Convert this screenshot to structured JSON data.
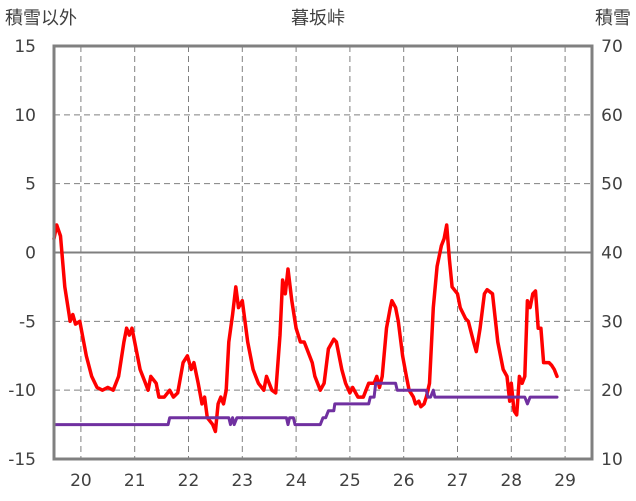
{
  "chart_data": {
    "type": "line",
    "title": "暮坂峠",
    "left_axis_label": "積雪以外",
    "right_axis_label": "積雪",
    "left_ylim": [
      -15,
      15
    ],
    "right_ylim": [
      10,
      70
    ],
    "left_ticks": [
      "15",
      "10",
      "5",
      "0",
      "-5",
      "-10",
      "-15"
    ],
    "right_ticks": [
      "70",
      "60",
      "50",
      "40",
      "30",
      "20",
      "10"
    ],
    "x_ticks": [
      "20",
      "21",
      "22",
      "23",
      "24",
      "25",
      "26",
      "27",
      "28",
      "29"
    ],
    "xlim": [
      19.5,
      29.5
    ],
    "grid": true,
    "series": [
      {
        "axis": "left",
        "color": "#ff0000",
        "points": [
          [
            19.5,
            1.0
          ],
          [
            19.55,
            2.0
          ],
          [
            19.62,
            1.2
          ],
          [
            19.7,
            -2.5
          ],
          [
            19.78,
            -4.5
          ],
          [
            19.8,
            -5.0
          ],
          [
            19.85,
            -4.5
          ],
          [
            19.9,
            -5.2
          ],
          [
            19.98,
            -5.0
          ],
          [
            20.1,
            -7.5
          ],
          [
            20.2,
            -9.0
          ],
          [
            20.3,
            -9.8
          ],
          [
            20.4,
            -10.0
          ],
          [
            20.5,
            -9.8
          ],
          [
            20.6,
            -10.0
          ],
          [
            20.7,
            -9.0
          ],
          [
            20.8,
            -6.5
          ],
          [
            20.85,
            -5.5
          ],
          [
            20.9,
            -6.0
          ],
          [
            20.95,
            -5.5
          ],
          [
            21.0,
            -6.5
          ],
          [
            21.1,
            -8.5
          ],
          [
            21.2,
            -9.5
          ],
          [
            21.25,
            -10.0
          ],
          [
            21.3,
            -9.0
          ],
          [
            21.4,
            -9.5
          ],
          [
            21.45,
            -10.5
          ],
          [
            21.55,
            -10.5
          ],
          [
            21.65,
            -10.0
          ],
          [
            21.72,
            -10.5
          ],
          [
            21.8,
            -10.2
          ],
          [
            21.9,
            -8.0
          ],
          [
            21.98,
            -7.5
          ],
          [
            22.05,
            -8.5
          ],
          [
            22.1,
            -8.0
          ],
          [
            22.18,
            -9.5
          ],
          [
            22.25,
            -11.0
          ],
          [
            22.3,
            -10.5
          ],
          [
            22.35,
            -12.0
          ],
          [
            22.45,
            -12.5
          ],
          [
            22.5,
            -13.0
          ],
          [
            22.55,
            -11.0
          ],
          [
            22.6,
            -10.5
          ],
          [
            22.65,
            -11.0
          ],
          [
            22.7,
            -10.0
          ],
          [
            22.75,
            -6.5
          ],
          [
            22.82,
            -4.5
          ],
          [
            22.88,
            -2.5
          ],
          [
            22.93,
            -4.0
          ],
          [
            23.0,
            -3.5
          ],
          [
            23.1,
            -6.5
          ],
          [
            23.2,
            -8.5
          ],
          [
            23.3,
            -9.5
          ],
          [
            23.4,
            -10.0
          ],
          [
            23.45,
            -9.0
          ],
          [
            23.5,
            -9.5
          ],
          [
            23.55,
            -10.0
          ],
          [
            23.62,
            -10.2
          ],
          [
            23.7,
            -6.0
          ],
          [
            23.75,
            -2.0
          ],
          [
            23.8,
            -3.0
          ],
          [
            23.85,
            -1.2
          ],
          [
            23.92,
            -3.5
          ],
          [
            24.0,
            -5.5
          ],
          [
            24.08,
            -6.5
          ],
          [
            24.15,
            -6.5
          ],
          [
            24.2,
            -7.0
          ],
          [
            24.3,
            -8.0
          ],
          [
            24.35,
            -9.0
          ],
          [
            24.45,
            -10.0
          ],
          [
            24.52,
            -9.5
          ],
          [
            24.6,
            -7.0
          ],
          [
            24.7,
            -6.3
          ],
          [
            24.75,
            -6.5
          ],
          [
            24.85,
            -8.5
          ],
          [
            24.92,
            -9.5
          ],
          [
            25.0,
            -10.2
          ],
          [
            25.05,
            -9.8
          ],
          [
            25.15,
            -10.5
          ],
          [
            25.25,
            -10.5
          ],
          [
            25.35,
            -9.5
          ],
          [
            25.45,
            -9.5
          ],
          [
            25.5,
            -9.0
          ],
          [
            25.55,
            -9.8
          ],
          [
            25.6,
            -9.0
          ],
          [
            25.68,
            -5.5
          ],
          [
            25.75,
            -4.0
          ],
          [
            25.78,
            -3.5
          ],
          [
            25.85,
            -4.0
          ],
          [
            25.9,
            -5.0
          ],
          [
            25.98,
            -7.5
          ],
          [
            26.05,
            -9.0
          ],
          [
            26.1,
            -10.0
          ],
          [
            26.18,
            -10.5
          ],
          [
            26.22,
            -11.0
          ],
          [
            26.28,
            -10.8
          ],
          [
            26.32,
            -11.2
          ],
          [
            26.38,
            -11.0
          ],
          [
            26.42,
            -10.5
          ],
          [
            26.48,
            -9.5
          ],
          [
            26.55,
            -4.0
          ],
          [
            26.62,
            -1.0
          ],
          [
            26.7,
            0.5
          ],
          [
            26.75,
            1.0
          ],
          [
            26.8,
            2.0
          ],
          [
            26.85,
            -0.5
          ],
          [
            26.9,
            -2.5
          ],
          [
            27.0,
            -3.0
          ],
          [
            27.05,
            -4.0
          ],
          [
            27.15,
            -4.8
          ],
          [
            27.2,
            -5.0
          ],
          [
            27.3,
            -6.5
          ],
          [
            27.35,
            -7.2
          ],
          [
            27.42,
            -5.5
          ],
          [
            27.5,
            -3.0
          ],
          [
            27.55,
            -2.7
          ],
          [
            27.65,
            -3.0
          ],
          [
            27.75,
            -6.5
          ],
          [
            27.8,
            -7.5
          ],
          [
            27.85,
            -8.5
          ],
          [
            27.92,
            -9.0
          ],
          [
            27.97,
            -10.8
          ],
          [
            28.0,
            -9.5
          ],
          [
            28.05,
            -11.5
          ],
          [
            28.1,
            -11.8
          ],
          [
            28.15,
            -9.0
          ],
          [
            28.2,
            -9.5
          ],
          [
            28.25,
            -9.0
          ],
          [
            28.3,
            -3.5
          ],
          [
            28.35,
            -4.0
          ],
          [
            28.4,
            -3.0
          ],
          [
            28.45,
            -2.8
          ],
          [
            28.5,
            -5.5
          ],
          [
            28.55,
            -5.5
          ],
          [
            28.6,
            -8.0
          ],
          [
            28.7,
            -8.0
          ],
          [
            28.75,
            -8.2
          ],
          [
            28.8,
            -8.5
          ],
          [
            28.85,
            -9.0
          ]
        ]
      },
      {
        "axis": "right",
        "color": "#7030a0",
        "points": [
          [
            19.5,
            15
          ],
          [
            21.62,
            15
          ],
          [
            21.65,
            16
          ],
          [
            22.75,
            16
          ],
          [
            22.78,
            15
          ],
          [
            22.82,
            16
          ],
          [
            22.85,
            15
          ],
          [
            22.9,
            16
          ],
          [
            23.82,
            16
          ],
          [
            23.85,
            15
          ],
          [
            23.88,
            16
          ],
          [
            23.95,
            16
          ],
          [
            23.98,
            15
          ],
          [
            24.45,
            15
          ],
          [
            24.5,
            16
          ],
          [
            24.55,
            16
          ],
          [
            24.6,
            17
          ],
          [
            24.7,
            17
          ],
          [
            24.72,
            18
          ],
          [
            25.35,
            18
          ],
          [
            25.38,
            19
          ],
          [
            25.45,
            19
          ],
          [
            25.48,
            21
          ],
          [
            25.85,
            21
          ],
          [
            25.88,
            20
          ],
          [
            26.42,
            20
          ],
          [
            26.45,
            19
          ],
          [
            26.5,
            19
          ],
          [
            26.55,
            20
          ],
          [
            26.58,
            19
          ],
          [
            28.25,
            19
          ],
          [
            28.3,
            18
          ],
          [
            28.35,
            19
          ],
          [
            28.85,
            19
          ]
        ]
      }
    ]
  }
}
